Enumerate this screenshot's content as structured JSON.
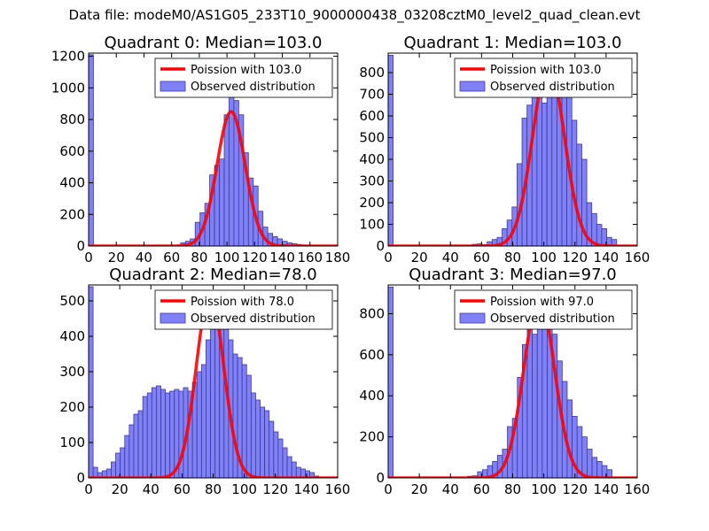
{
  "figure_title": "Data file: modeM0/AS1G05_233T10_9000000438_03208cztM0_level2_quad_clean.evt",
  "colors": {
    "bar_fill": "#8080f7",
    "bar_edge": "#3a3a9a",
    "curve": "#ff0000",
    "axis": "#000000"
  },
  "chart_data": [
    {
      "type": "bar",
      "title": "Quadrant 0: Median=103.0",
      "legend": {
        "placement": "top-right",
        "curve_label": "Poission with 103.0",
        "bars_label": "Observed distribution"
      },
      "xlim": [
        0,
        180
      ],
      "ylim": [
        0,
        1220
      ],
      "xticks": [
        "0",
        "20",
        "40",
        "60",
        "80",
        "100",
        "120",
        "140",
        "160",
        "180"
      ],
      "xtick_values": [
        0,
        20,
        40,
        60,
        80,
        100,
        120,
        140,
        160,
        180
      ],
      "yticks": [
        "0",
        "200",
        "400",
        "600",
        "800",
        "1000",
        "1200"
      ],
      "ytick_values": [
        0,
        200,
        400,
        600,
        800,
        1000,
        1200
      ],
      "bin_width": 3.5,
      "bins_start": [
        0,
        66.5,
        70,
        73.5,
        77,
        80.5,
        84,
        87.5,
        91,
        94.5,
        98,
        101.5,
        105,
        108.5,
        112,
        115.5,
        119,
        122.5,
        126,
        129.5,
        133,
        136.5,
        140,
        143.5,
        147,
        150.5,
        154,
        157.5,
        161
      ],
      "bins_count": [
        1210,
        20,
        30,
        45,
        150,
        210,
        270,
        450,
        510,
        550,
        830,
        960,
        920,
        830,
        590,
        430,
        380,
        220,
        120,
        80,
        60,
        45,
        30,
        20,
        15,
        10,
        5,
        4,
        2
      ],
      "poisson_mean": 103.0,
      "poisson_peak": 850
    },
    {
      "type": "bar",
      "title": "Quadrant 1: Median=103.0",
      "legend": {
        "placement": "top-right",
        "curve_label": "Poission with 103.0",
        "bars_label": "Observed distribution"
      },
      "xlim": [
        0,
        160
      ],
      "ylim": [
        0,
        890
      ],
      "xticks": [
        "0",
        "20",
        "40",
        "60",
        "80",
        "100",
        "120",
        "140",
        "160"
      ],
      "xtick_values": [
        0,
        20,
        40,
        60,
        80,
        100,
        120,
        140,
        160
      ],
      "yticks": [
        "0",
        "100",
        "200",
        "300",
        "400",
        "500",
        "600",
        "700",
        "800"
      ],
      "ytick_values": [
        0,
        100,
        200,
        300,
        400,
        500,
        600,
        700,
        800
      ],
      "bin_width": 3.2,
      "bins_start": [
        0,
        54,
        57.2,
        60.4,
        63.6,
        66.8,
        70,
        73.2,
        76.4,
        79.6,
        82.8,
        86,
        89.2,
        92.4,
        95.6,
        98.8,
        102,
        105.2,
        108.4,
        111.6,
        114.8,
        118,
        121.2,
        124.4,
        127.6,
        130.8,
        134,
        137.2,
        140.4,
        143.6
      ],
      "bins_count": [
        880,
        8,
        10,
        6,
        20,
        30,
        40,
        80,
        120,
        180,
        380,
        590,
        650,
        780,
        810,
        660,
        780,
        850,
        780,
        720,
        700,
        580,
        470,
        400,
        200,
        150,
        100,
        80,
        40,
        30
      ],
      "poisson_mean": 103.0,
      "poisson_peak": 840
    },
    {
      "type": "bar",
      "title": "Quadrant 2: Median=78.0",
      "legend": {
        "placement": "top-right",
        "curve_label": "Poission with 78.0",
        "bars_label": "Observed distribution"
      },
      "xlim": [
        0,
        160
      ],
      "ylim": [
        0,
        545
      ],
      "xticks": [
        "0",
        "20",
        "40",
        "60",
        "80",
        "100",
        "120",
        "140",
        "160"
      ],
      "xtick_values": [
        0,
        20,
        40,
        60,
        80,
        100,
        120,
        140,
        160
      ],
      "yticks": [
        "0",
        "100",
        "200",
        "300",
        "400",
        "500"
      ],
      "ytick_values": [
        0,
        100,
        200,
        300,
        400,
        500
      ],
      "bin_width": 2.9,
      "bins_start": [
        0,
        2.9,
        5.8,
        8.7,
        11.6,
        14.5,
        17.4,
        20.3,
        23.2,
        26.1,
        29,
        31.9,
        34.8,
        37.7,
        40.6,
        43.5,
        46.4,
        49.3,
        52.2,
        55.1,
        58,
        60.9,
        63.8,
        66.7,
        69.6,
        72.5,
        75.4,
        78.3,
        81.2,
        84.1,
        87,
        89.9,
        92.8,
        95.7,
        98.6,
        101.5,
        104.4,
        107.3,
        110.2,
        113.1,
        116,
        118.9,
        121.8,
        124.7,
        127.6,
        130.5,
        133.4,
        136.3,
        139.2,
        142.1,
        145
      ],
      "bins_count": [
        540,
        30,
        15,
        20,
        25,
        45,
        70,
        85,
        120,
        150,
        180,
        190,
        230,
        240,
        255,
        260,
        250,
        240,
        245,
        250,
        245,
        255,
        245,
        270,
        300,
        320,
        390,
        450,
        470,
        440,
        460,
        390,
        350,
        340,
        320,
        290,
        240,
        220,
        200,
        190,
        160,
        130,
        110,
        85,
        60,
        45,
        30,
        25,
        20,
        15,
        5
      ],
      "poisson_mean": 78.0,
      "poisson_peak": 520
    },
    {
      "type": "bar",
      "title": "Quadrant 3: Median=97.0",
      "legend": {
        "placement": "top-right",
        "curve_label": "Poission with 97.0",
        "bars_label": "Observed distribution"
      },
      "xlim": [
        0,
        160
      ],
      "ylim": [
        0,
        940
      ],
      "xticks": [
        "0",
        "20",
        "40",
        "60",
        "80",
        "100",
        "120",
        "140",
        "160"
      ],
      "xtick_values": [
        0,
        20,
        40,
        60,
        80,
        100,
        120,
        140,
        160
      ],
      "yticks": [
        "0",
        "200",
        "400",
        "600",
        "800"
      ],
      "ytick_values": [
        0,
        200,
        400,
        600,
        800
      ],
      "bin_width": 3.2,
      "bins_start": [
        0,
        51,
        54.2,
        57.4,
        60.6,
        63.8,
        67,
        70.2,
        73.4,
        76.6,
        79.8,
        83,
        86.2,
        89.4,
        92.6,
        95.8,
        99,
        102.2,
        105.4,
        108.6,
        111.8,
        115,
        118.2,
        121.4,
        124.6,
        127.8,
        131,
        134.2,
        137.4,
        140.6
      ],
      "bins_count": [
        930,
        8,
        10,
        30,
        40,
        60,
        80,
        110,
        140,
        250,
        290,
        490,
        650,
        860,
        700,
        870,
        860,
        870,
        700,
        570,
        470,
        380,
        300,
        250,
        200,
        140,
        100,
        80,
        60,
        40
      ],
      "poisson_mean": 97.0,
      "poisson_peak": 880
    }
  ]
}
